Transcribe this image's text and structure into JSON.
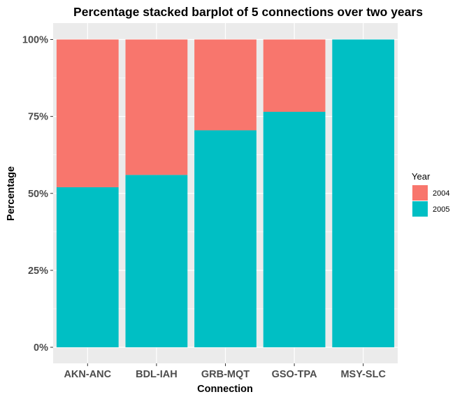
{
  "chart_data": {
    "type": "bar",
    "stacked": true,
    "normalized": true,
    "title": "Percentage stacked barplot of 5 connections over two years",
    "xlabel": "Connection",
    "ylabel": "Percentage",
    "categories": [
      "AKN-ANC",
      "BDL-IAH",
      "GRB-MQT",
      "GSO-TPA",
      "MSY-SLC"
    ],
    "series": [
      {
        "name": "2005",
        "color": "#00BFC4",
        "values": [
          0.52,
          0.56,
          0.705,
          0.765,
          1.0
        ]
      },
      {
        "name": "2004",
        "color": "#F8766D",
        "values": [
          0.48,
          0.44,
          0.295,
          0.235,
          0.0
        ]
      }
    ],
    "ylim": [
      0,
      1
    ],
    "yticks": [
      0,
      0.25,
      0.5,
      0.75,
      1.0
    ],
    "ytick_labels": [
      "0%",
      "25%",
      "50%",
      "75%",
      "100%"
    ],
    "legend": {
      "title": "Year",
      "position": "right",
      "entries": [
        {
          "label": "2004",
          "color": "#F8766D"
        },
        {
          "label": "2005",
          "color": "#00BFC4"
        }
      ]
    },
    "grid": true,
    "panel_background": "#EBEBEB"
  }
}
